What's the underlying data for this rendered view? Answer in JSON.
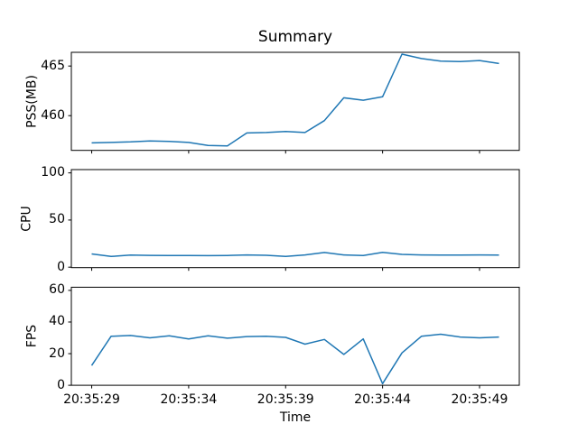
{
  "figure": {
    "title": "Summary",
    "xlabel": "Time"
  },
  "style": {
    "line_color": "#1f77b4",
    "axis_color": "#000000",
    "text_color": "#000000",
    "background": "#ffffff"
  },
  "chart_data": [
    {
      "type": "line",
      "title": "Summary",
      "ylabel": "PSS(MB)",
      "ylim": [
        456.5,
        466.38
      ],
      "yticks": [
        {
          "v": 460,
          "label": "460"
        },
        {
          "v": 465,
          "label": "465"
        }
      ],
      "x_interval_seconds": 1,
      "xlim_seconds": [
        -1.05,
        22.05
      ],
      "grid": false,
      "legend": "none",
      "series": [
        {
          "name": "PSS(MB)",
          "values": [
            457.25,
            457.3,
            457.35,
            457.45,
            457.4,
            457.3,
            457.0,
            456.95,
            458.25,
            458.3,
            458.4,
            458.3,
            459.5,
            461.8,
            461.55,
            461.9,
            466.2,
            465.75,
            465.5,
            465.45,
            465.55,
            465.25
          ]
        }
      ]
    },
    {
      "type": "line",
      "ylabel": "CPU",
      "ylim": [
        -0.5,
        103.5
      ],
      "yticks": [
        {
          "v": 0,
          "label": "0"
        },
        {
          "v": 50,
          "label": "50"
        },
        {
          "v": 100,
          "label": "100"
        }
      ],
      "x_interval_seconds": 1,
      "xlim_seconds": [
        -1.05,
        22.05
      ],
      "grid": false,
      "legend": "none",
      "series": [
        {
          "name": "CPU",
          "values": [
            14,
            11.4,
            12.8,
            12.5,
            12.4,
            12.3,
            12.2,
            12.4,
            13,
            12.6,
            11.5,
            13,
            15.6,
            13,
            12.4,
            15.8,
            13.6,
            13,
            12.8,
            12.9,
            13,
            12.8
          ]
        }
      ]
    },
    {
      "type": "line",
      "ylabel": "FPS",
      "xlabel": "Time",
      "ylim": [
        0,
        62
      ],
      "yticks": [
        {
          "v": 0,
          "label": "0"
        },
        {
          "v": 20,
          "label": "20"
        },
        {
          "v": 40,
          "label": "40"
        },
        {
          "v": 60,
          "label": "60"
        }
      ],
      "xticks": [
        {
          "t": 0,
          "label": "20:35:29"
        },
        {
          "t": 5,
          "label": "20:35:34"
        },
        {
          "t": 10,
          "label": "20:35:39"
        },
        {
          "t": 15,
          "label": "20:35:44"
        },
        {
          "t": 20,
          "label": "20:35:49"
        }
      ],
      "x_interval_seconds": 1,
      "xlim_seconds": [
        -1.05,
        22.05
      ],
      "grid": false,
      "legend": "none",
      "series": [
        {
          "name": "FPS",
          "values": [
            12.5,
            31,
            31.5,
            30,
            31.3,
            29.3,
            31.3,
            29.8,
            30.8,
            31,
            30.3,
            26,
            29,
            19.5,
            29.3,
            1,
            20.5,
            31,
            32.3,
            30.5,
            30,
            30.5
          ]
        }
      ]
    }
  ]
}
